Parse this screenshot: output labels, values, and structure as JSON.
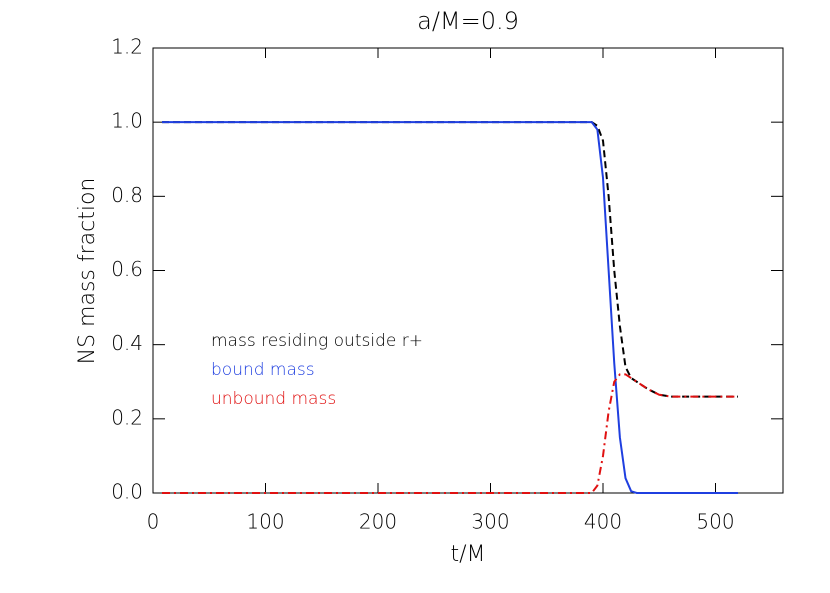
{
  "chart_data": {
    "type": "line",
    "title": "a/M=0.9",
    "xlabel": "t/M",
    "ylabel": "NS mass fraction",
    "x": [
      8,
      100,
      200,
      300,
      380,
      390,
      395,
      400,
      405,
      410,
      415,
      420,
      425,
      430,
      440,
      450,
      460,
      520
    ],
    "series": [
      {
        "name": "mass residing outside r+",
        "color": "#000000",
        "linestyle": "dashed",
        "values": [
          1.0,
          1.0,
          1.0,
          1.0,
          1.0,
          1.0,
          0.99,
          0.95,
          0.8,
          0.6,
          0.45,
          0.34,
          0.31,
          0.3,
          0.28,
          0.265,
          0.26,
          0.26
        ]
      },
      {
        "name": "bound mass",
        "color": "#1f3fe0",
        "linestyle": "solid",
        "values": [
          1.0,
          1.0,
          1.0,
          1.0,
          1.0,
          1.0,
          0.98,
          0.85,
          0.6,
          0.35,
          0.15,
          0.04,
          0.005,
          0,
          0,
          0,
          0,
          0
        ]
      },
      {
        "name": "unbound mass",
        "color": "#e01010",
        "linestyle": "dashdot",
        "values": [
          0,
          0,
          0,
          0,
          0,
          0,
          0.02,
          0.1,
          0.22,
          0.3,
          0.32,
          0.32,
          0.31,
          0.3,
          0.28,
          0.265,
          0.26,
          0.26
        ]
      }
    ],
    "xlim": [
      0,
      560
    ],
    "xticks": [
      0,
      100,
      200,
      300,
      400,
      500
    ],
    "ylim": [
      0,
      1.2
    ],
    "yticks": [
      {
        "value": 0,
        "label": "0.0"
      },
      {
        "value": 0.2,
        "label": "0.2"
      },
      {
        "value": 0.4,
        "label": "0.4"
      },
      {
        "value": 0.6,
        "label": "0.6"
      },
      {
        "value": 0.8,
        "label": "0.8"
      },
      {
        "value": 1.0,
        "label": "1.0"
      },
      {
        "value": 1.2,
        "label": "1.2"
      }
    ]
  }
}
